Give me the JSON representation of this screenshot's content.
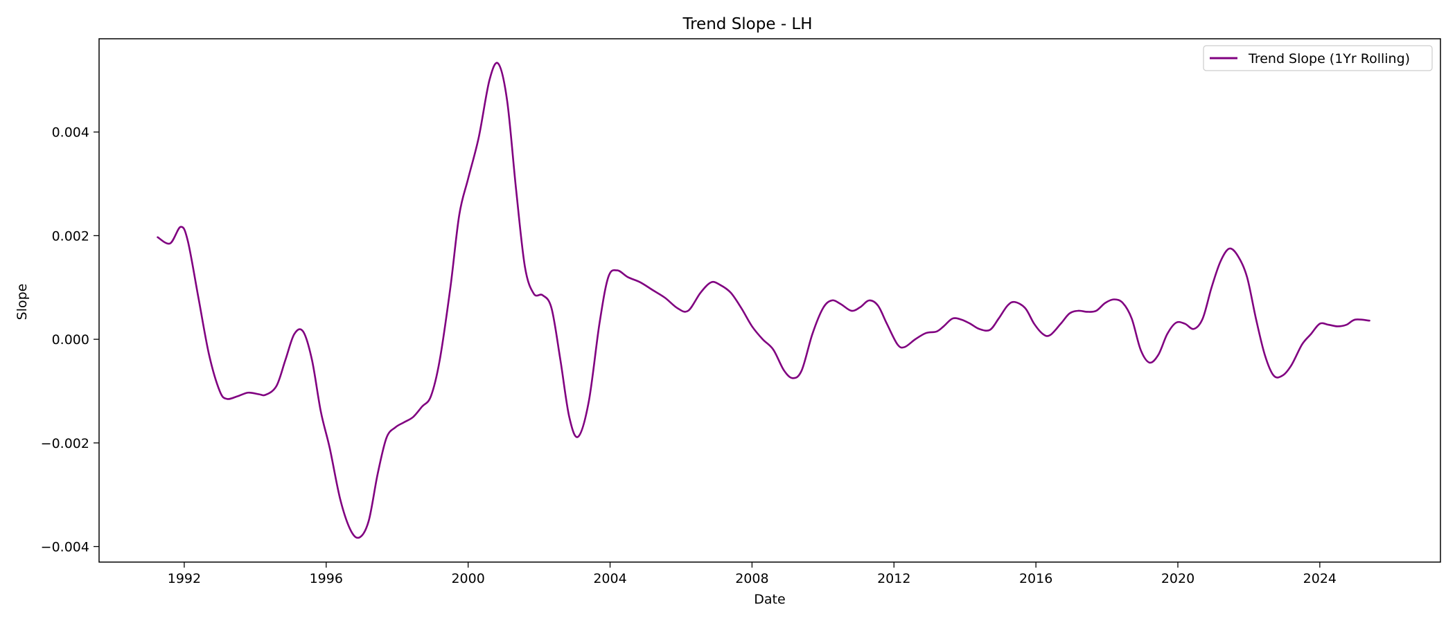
{
  "chart_data": {
    "type": "line",
    "title": "Trend Slope - LH",
    "xlabel": "Date",
    "ylabel": "Slope",
    "xlim": [
      1989.6,
      2027.4
    ],
    "ylim": [
      -0.0043,
      0.0058
    ],
    "x_ticks": [
      1992,
      1996,
      2000,
      2004,
      2008,
      2012,
      2016,
      2020,
      2024
    ],
    "y_ticks": [
      -0.004,
      -0.002,
      0.0,
      0.002,
      0.004
    ],
    "y_tick_labels": [
      "−0.004",
      "−0.002",
      "0.000",
      "0.002",
      "0.004"
    ],
    "legend_position": "top-right",
    "grid": false,
    "series": [
      {
        "name": "Trend Slope (1Yr Rolling)",
        "color": "#800080",
        "points": [
          [
            1991.25,
            0.00197
          ],
          [
            1991.6,
            0.00185
          ],
          [
            1991.9,
            0.00217
          ],
          [
            1992.1,
            0.0019
          ],
          [
            1992.4,
            0.0008
          ],
          [
            1992.7,
            -0.0003
          ],
          [
            1993.0,
            -0.001
          ],
          [
            1993.2,
            -0.00115
          ],
          [
            1993.5,
            -0.0011
          ],
          [
            1993.8,
            -0.00103
          ],
          [
            1994.1,
            -0.00106
          ],
          [
            1994.3,
            -0.00107
          ],
          [
            1994.6,
            -0.0009
          ],
          [
            1994.85,
            -0.0004
          ],
          [
            1995.1,
            0.0001
          ],
          [
            1995.35,
            0.00015
          ],
          [
            1995.6,
            -0.0004
          ],
          [
            1995.85,
            -0.0014
          ],
          [
            1996.1,
            -0.0021
          ],
          [
            1996.4,
            -0.0031
          ],
          [
            1996.7,
            -0.0037
          ],
          [
            1996.95,
            -0.00382
          ],
          [
            1997.2,
            -0.0035
          ],
          [
            1997.45,
            -0.0026
          ],
          [
            1997.7,
            -0.0019
          ],
          [
            1997.95,
            -0.0017
          ],
          [
            1998.2,
            -0.0016
          ],
          [
            1998.45,
            -0.0015
          ],
          [
            1998.7,
            -0.0013
          ],
          [
            1998.95,
            -0.0011
          ],
          [
            1999.2,
            -0.0004
          ],
          [
            1999.5,
            0.001
          ],
          [
            1999.75,
            0.0024
          ],
          [
            2000.0,
            0.0031
          ],
          [
            2000.3,
            0.0039
          ],
          [
            2000.6,
            0.005
          ],
          [
            2000.85,
            0.00532
          ],
          [
            2001.1,
            0.0046
          ],
          [
            2001.35,
            0.0029
          ],
          [
            2001.6,
            0.0014
          ],
          [
            2001.85,
            0.00088
          ],
          [
            2002.1,
            0.00085
          ],
          [
            2002.35,
            0.0006
          ],
          [
            2002.6,
            -0.0004
          ],
          [
            2002.85,
            -0.0015
          ],
          [
            2003.1,
            -0.00188
          ],
          [
            2003.4,
            -0.0012
          ],
          [
            2003.7,
            0.0003
          ],
          [
            2003.95,
            0.0012
          ],
          [
            2004.2,
            0.00133
          ],
          [
            2004.5,
            0.0012
          ],
          [
            2004.85,
            0.0011
          ],
          [
            2005.2,
            0.00095
          ],
          [
            2005.55,
            0.0008
          ],
          [
            2005.9,
            0.0006
          ],
          [
            2006.2,
            0.00055
          ],
          [
            2006.55,
            0.0009
          ],
          [
            2006.85,
            0.0011
          ],
          [
            2007.1,
            0.00105
          ],
          [
            2007.4,
            0.0009
          ],
          [
            2007.7,
            0.0006
          ],
          [
            2008.0,
            0.00025
          ],
          [
            2008.3,
            0.0
          ],
          [
            2008.6,
            -0.0002
          ],
          [
            2008.9,
            -0.0006
          ],
          [
            2009.15,
            -0.00075
          ],
          [
            2009.4,
            -0.0006
          ],
          [
            2009.7,
            0.0001
          ],
          [
            2010.0,
            0.0006
          ],
          [
            2010.25,
            0.00075
          ],
          [
            2010.5,
            0.00068
          ],
          [
            2010.8,
            0.00055
          ],
          [
            2011.05,
            0.00062
          ],
          [
            2011.3,
            0.00075
          ],
          [
            2011.55,
            0.00065
          ],
          [
            2011.8,
            0.0003
          ],
          [
            2012.1,
            -0.0001
          ],
          [
            2012.3,
            -0.00015
          ],
          [
            2012.6,
            0.0
          ],
          [
            2012.9,
            0.00012
          ],
          [
            2013.2,
            0.00015
          ],
          [
            2013.4,
            0.00025
          ],
          [
            2013.65,
            0.0004
          ],
          [
            2013.9,
            0.00038
          ],
          [
            2014.15,
            0.0003
          ],
          [
            2014.4,
            0.0002
          ],
          [
            2014.7,
            0.00018
          ],
          [
            2014.95,
            0.0004
          ],
          [
            2015.2,
            0.00065
          ],
          [
            2015.4,
            0.00072
          ],
          [
            2015.7,
            0.0006
          ],
          [
            2015.95,
            0.0003
          ],
          [
            2016.2,
            0.0001
          ],
          [
            2016.4,
            8e-05
          ],
          [
            2016.7,
            0.0003
          ],
          [
            2016.95,
            0.0005
          ],
          [
            2017.2,
            0.00055
          ],
          [
            2017.45,
            0.00053
          ],
          [
            2017.7,
            0.00055
          ],
          [
            2017.95,
            0.0007
          ],
          [
            2018.2,
            0.00077
          ],
          [
            2018.45,
            0.0007
          ],
          [
            2018.7,
            0.0004
          ],
          [
            2018.95,
            -0.0002
          ],
          [
            2019.2,
            -0.00045
          ],
          [
            2019.45,
            -0.0003
          ],
          [
            2019.7,
            0.0001
          ],
          [
            2019.95,
            0.00032
          ],
          [
            2020.2,
            0.0003
          ],
          [
            2020.45,
            0.0002
          ],
          [
            2020.7,
            0.0004
          ],
          [
            2020.95,
            0.001
          ],
          [
            2021.2,
            0.0015
          ],
          [
            2021.45,
            0.00175
          ],
          [
            2021.7,
            0.0016
          ],
          [
            2021.95,
            0.0012
          ],
          [
            2022.2,
            0.0004
          ],
          [
            2022.45,
            -0.0003
          ],
          [
            2022.7,
            -0.0007
          ],
          [
            2022.95,
            -0.0007
          ],
          [
            2023.2,
            -0.0005
          ],
          [
            2023.5,
            -0.0001
          ],
          [
            2023.75,
            0.0001
          ],
          [
            2024.0,
            0.0003
          ],
          [
            2024.25,
            0.00028
          ],
          [
            2024.5,
            0.00025
          ],
          [
            2024.75,
            0.00028
          ],
          [
            2025.0,
            0.00038
          ],
          [
            2025.4,
            0.00036
          ]
        ]
      }
    ]
  }
}
